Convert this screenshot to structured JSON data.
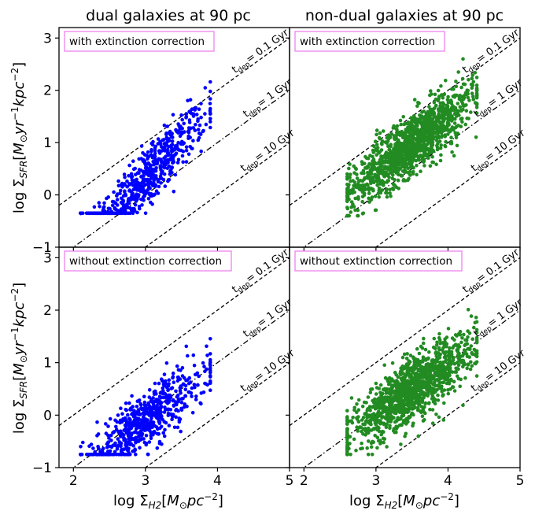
{
  "figure": {
    "col_titles": [
      "dual galaxies at 90 pc",
      "non-dual galaxies at 90 pc"
    ],
    "row_labels": [
      "with extinction correction",
      "without extinction correction"
    ],
    "ylabel": "log ΣSFR[M⊙yr−1kpc−2]",
    "xlabel": "log ΣH2[M⊙pc−2]",
    "tdep_labels": [
      "tdep= 0.1 Gyr",
      "tdep= 1 Gyr",
      "tdep= 10 Gyr"
    ],
    "colors": {
      "dual": "#0000ff",
      "nondual": "#228b22",
      "annot_border": "#ee82ee",
      "lines": "#000000"
    }
  },
  "chart_data": [
    {
      "type": "scatter",
      "panel": "dual, with extinction correction",
      "title": "dual galaxies at 90 pc",
      "annotation": "with extinction correction",
      "ylabel": "log ΣSFR[M⊙yr−1kpc−2]",
      "xlim": [
        1.8,
        5
      ],
      "ylim": [
        -1,
        3.2
      ],
      "xticks": [
        2,
        3,
        4,
        5
      ],
      "yticks": [
        -1,
        0,
        1,
        2,
        3
      ],
      "reference_lines": [
        {
          "label": "tdep= 0.1 Gyr",
          "offset": 1,
          "style": "dashed"
        },
        {
          "label": "tdep= 1 Gyr",
          "offset": 0,
          "style": "dashdot"
        },
        {
          "label": "tdep= 10 Gyr",
          "offset": -1,
          "style": "dashed"
        }
      ],
      "series": [
        {
          "color": "#0000ff",
          "count": 650,
          "x_range": [
            2.1,
            3.9
          ],
          "y_range": [
            -0.35,
            2.4
          ],
          "slope": 1.45,
          "intercept_at_x3": 0.3
        }
      ]
    },
    {
      "type": "scatter",
      "panel": "non-dual, with extinction correction",
      "title": "non-dual galaxies at 90 pc",
      "annotation": "with extinction correction",
      "xlim": [
        1.8,
        5
      ],
      "ylim": [
        -1,
        3.2
      ],
      "xticks": [
        2,
        3,
        4,
        5
      ],
      "yticks": [
        -1,
        0,
        1,
        2,
        3
      ],
      "reference_lines": [
        {
          "label": "tdep= 0.1 Gyr",
          "offset": 1,
          "style": "dashed"
        },
        {
          "label": "tdep= 1 Gyr",
          "offset": 0,
          "style": "dashdot"
        },
        {
          "label": "tdep= 10 Gyr",
          "offset": -1,
          "style": "dashed"
        }
      ],
      "series": [
        {
          "color": "#228b22",
          "count": 1300,
          "x_range": [
            2.6,
            4.4
          ],
          "y_range": [
            -0.4,
            2.6
          ],
          "slope": 1.05,
          "intercept_at_x3": 0.45
        }
      ]
    },
    {
      "type": "scatter",
      "panel": "dual, without extinction correction",
      "annotation": "without extinction correction",
      "ylabel": "log ΣSFR[M⊙yr−1kpc−2]",
      "xlabel": "log ΣH2[M⊙pc−2]",
      "xlim": [
        1.8,
        5
      ],
      "ylim": [
        -1,
        3.2
      ],
      "xticks": [
        2,
        3,
        4,
        5
      ],
      "yticks": [
        -1,
        0,
        1,
        2,
        3
      ],
      "reference_lines": [
        {
          "label": "tdep= 0.1 Gyr",
          "offset": 1,
          "style": "dashed"
        },
        {
          "label": "tdep= 1 Gyr",
          "offset": 0,
          "style": "dashdot"
        },
        {
          "label": "tdep= 10 Gyr",
          "offset": -1,
          "style": "dashed"
        }
      ],
      "series": [
        {
          "color": "#0000ff",
          "count": 650,
          "x_range": [
            2.1,
            3.9
          ],
          "y_range": [
            -0.75,
            1.6
          ],
          "slope": 1.05,
          "intercept_at_x3": -0.1
        }
      ]
    },
    {
      "type": "scatter",
      "panel": "non-dual, without extinction correction",
      "annotation": "without extinction correction",
      "xlabel": "log ΣH2[M⊙pc−2]",
      "xlim": [
        1.8,
        5
      ],
      "ylim": [
        -1,
        3.2
      ],
      "xticks": [
        2,
        3,
        4,
        5
      ],
      "yticks": [
        -1,
        0,
        1,
        2,
        3
      ],
      "reference_lines": [
        {
          "label": "tdep= 0.1 Gyr",
          "offset": 1,
          "style": "dashed"
        },
        {
          "label": "tdep= 1 Gyr",
          "offset": 0,
          "style": "dashdot"
        },
        {
          "label": "tdep= 10 Gyr",
          "offset": -1,
          "style": "dashed"
        }
      ],
      "series": [
        {
          "color": "#228b22",
          "count": 1300,
          "x_range": [
            2.6,
            4.4
          ],
          "y_range": [
            -0.75,
            2.1
          ],
          "slope": 0.95,
          "intercept_at_x3": 0.0
        }
      ]
    }
  ]
}
